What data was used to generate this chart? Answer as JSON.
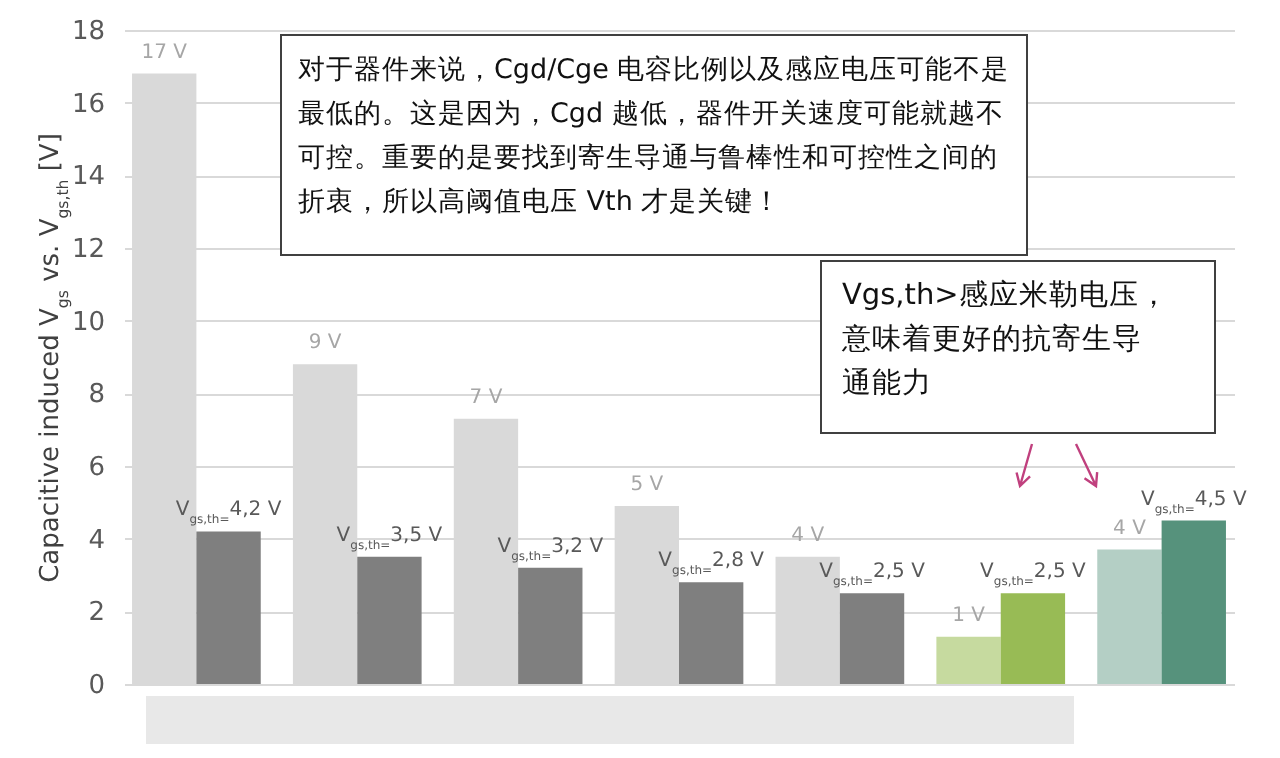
{
  "chart_data": {
    "type": "bar",
    "ylabel": "Capacitive induced V$_{gs}$ vs. V$_{gs,th}$ [V]",
    "categories": [
      null,
      null,
      null,
      null,
      null,
      null,
      null
    ],
    "series": [
      {
        "colors": [
          "#d9d9d9",
          "#d9d9d9",
          "#d9d9d9",
          "#d9d9d9",
          "#d9d9d9",
          "#c6da9f",
          "#b4cfc5"
        ],
        "values": [
          16.8,
          8.8,
          7.3,
          4.9,
          3.5,
          1.3,
          3.7
        ],
        "value_labels": [
          "17 V",
          "9 V",
          "7 V",
          "5 V",
          "4 V",
          "1 V",
          "4 V"
        ]
      },
      {
        "colors": [
          "#7f7f7f",
          "#7f7f7f",
          "#7f7f7f",
          "#7f7f7f",
          "#7f7f7f",
          "#98bb55",
          "#56927c"
        ],
        "values": [
          4.2,
          3.5,
          3.2,
          2.8,
          2.5,
          2.5,
          4.5
        ],
        "value_labels": [
          "V$_{gs,th=}$4,2 V",
          "V$_{gs,th=}$3,5 V",
          "V$_{gs,th=}$3,2 V",
          "V$_{gs,th=}$2,8 V",
          "V$_{gs,th=}$2,5 V",
          "V$_{gs,th=}$2,5 V",
          "V$_{gs,th=}$4,5 V"
        ]
      }
    ],
    "ylim": [
      0,
      18
    ],
    "yticks": [
      0,
      2,
      4,
      6,
      8,
      10,
      12,
      14,
      16,
      18
    ],
    "grid": "y",
    "annotations": [
      "对于器件来说，Cgd/Cge 电容比例以及感应电压可能不是最低的。这是因为，Cgd 越低，器件开关速度可能就越不可控。重要的是要找到寄生导通与鲁棒性和可控性之间的折衷，所以高阈值电压 Vth 才是关键！",
      "Vgs,th>感应米勒电压，意味着更好的抗寄生导通能力"
    ]
  }
}
